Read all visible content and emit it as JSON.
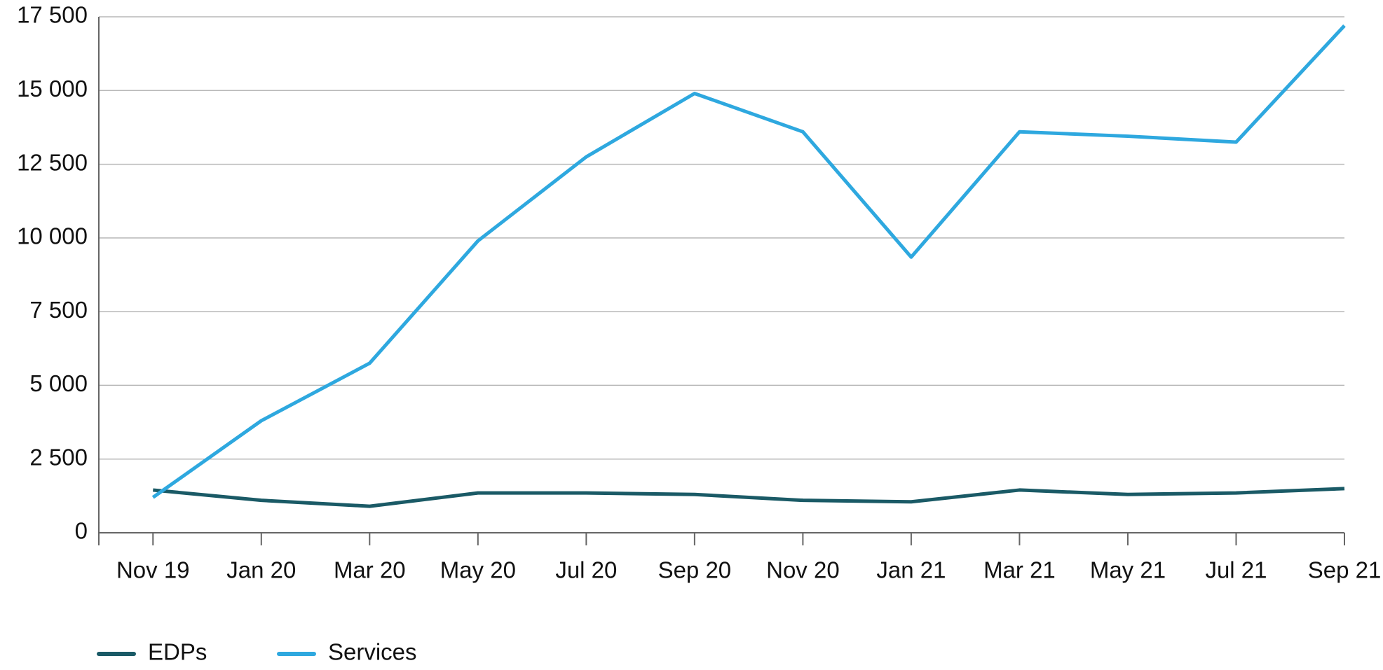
{
  "chart_data": {
    "type": "line",
    "categories": [
      "Nov 19",
      "Jan 20",
      "Mar 20",
      "May 20",
      "Jul 20",
      "Sep 20",
      "Nov 20",
      "Jan 21",
      "Mar 21",
      "May 21",
      "Jul 21",
      "Sep 21"
    ],
    "series": [
      {
        "name": "EDPs",
        "color": "#1a5a66",
        "values": [
          1450,
          1100,
          900,
          1350,
          1350,
          1300,
          1100,
          1050,
          1450,
          1300,
          1350,
          1500
        ]
      },
      {
        "name": "Services",
        "color": "#2ea8df",
        "values": [
          1200,
          3800,
          5750,
          9900,
          12750,
          14900,
          13600,
          9350,
          13600,
          13450,
          13250,
          17200
        ]
      }
    ],
    "ylim": [
      0,
      17500
    ],
    "yticks": [
      0,
      {
        "value": 2500,
        "label": "2 500"
      },
      {
        "value": 5000,
        "label": "5 000"
      },
      {
        "value": 7500,
        "label": "7 500"
      },
      {
        "value": 10000,
        "label": "10 000"
      },
      {
        "value": 12500,
        "label": "12 500"
      },
      {
        "value": 15000,
        "label": "15 000"
      },
      {
        "value": 17500,
        "label": "17 500"
      }
    ],
    "grid": true,
    "legend": "bottom-left"
  }
}
